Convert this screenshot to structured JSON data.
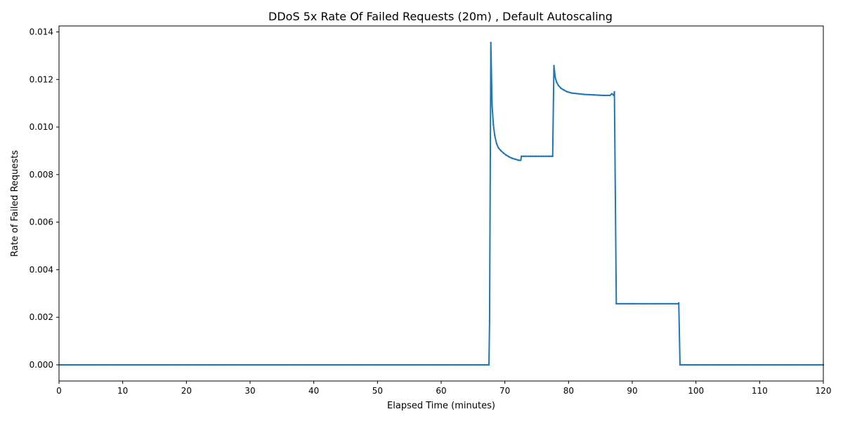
{
  "chart_data": {
    "type": "line",
    "title": "DDoS 5x Rate Of Failed Requests (20m) , Default Autoscaling",
    "xlabel": "Elapsed Time (minutes)",
    "ylabel": "Rate of Failed Requests",
    "xlim": [
      0,
      120
    ],
    "ylim": [
      -0.00068,
      0.01425
    ],
    "xticks": [
      0,
      10,
      20,
      30,
      40,
      50,
      60,
      70,
      80,
      90,
      100,
      110,
      120
    ],
    "xtick_labels": [
      "0",
      "10",
      "20",
      "30",
      "40",
      "50",
      "60",
      "70",
      "80",
      "90",
      "100",
      "110",
      "120"
    ],
    "yticks": [
      0,
      0.002,
      0.004,
      0.006,
      0.008,
      0.01,
      0.012,
      0.014
    ],
    "ytick_labels": [
      "0.000",
      "0.002",
      "0.004",
      "0.006",
      "0.008",
      "0.010",
      "0.012",
      "0.014"
    ],
    "grid": false,
    "series_color": "#1f77b4",
    "series": [
      {
        "x": [
          0,
          67.5,
          67.6,
          67.8,
          68.0,
          68.2,
          68.4,
          68.7,
          69.0,
          69.4,
          69.8,
          70.2,
          70.7,
          71.2,
          71.7,
          72.2,
          72.5,
          72.6,
          73.0,
          75.0,
          77.0,
          77.5,
          77.7,
          77.9,
          78.1,
          78.4,
          78.8,
          79.3,
          79.8,
          80.5,
          81.5,
          82.5,
          84.0,
          85.5,
          86.5,
          86.8,
          87.1,
          87.2,
          87.5,
          90.0,
          94.0,
          97.2,
          97.3,
          97.5,
          100.0,
          110.0,
          120.0
        ],
        "y": [
          0,
          0,
          0.0018,
          0.01355,
          0.0109,
          0.0101,
          0.00965,
          0.0093,
          0.00912,
          0.009,
          0.0089,
          0.00882,
          0.00874,
          0.00868,
          0.00864,
          0.0086,
          0.0086,
          0.00877,
          0.00877,
          0.00877,
          0.00877,
          0.00877,
          0.01258,
          0.0121,
          0.0119,
          0.01175,
          0.01163,
          0.01155,
          0.01148,
          0.01143,
          0.0114,
          0.01137,
          0.01135,
          0.01133,
          0.01133,
          0.0114,
          0.01133,
          0.01148,
          0.00257,
          0.00257,
          0.00257,
          0.00257,
          0.0026,
          0,
          0,
          0,
          0
        ]
      }
    ]
  }
}
